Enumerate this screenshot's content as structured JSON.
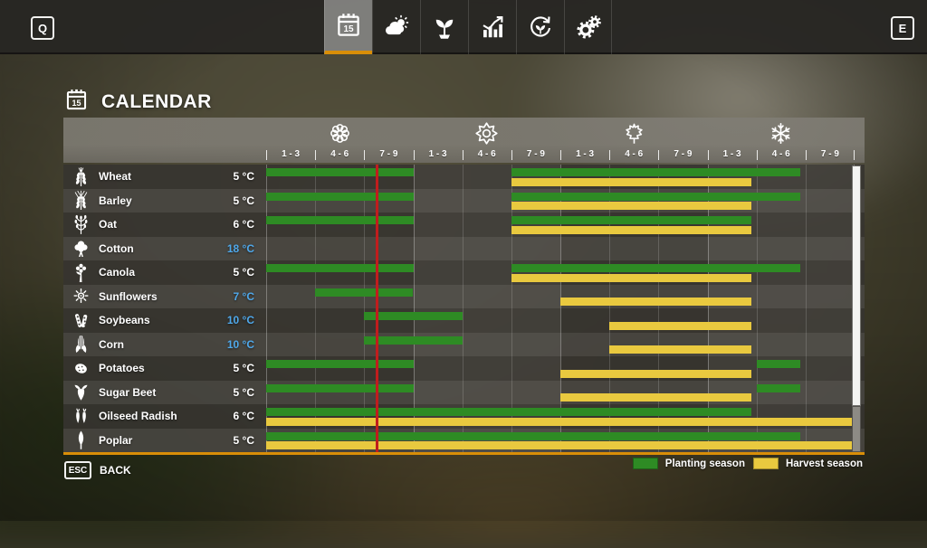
{
  "topbar": {
    "left_key": "Q",
    "right_key": "E",
    "tabs": [
      {
        "id": "calendar",
        "icon": "calendar-icon",
        "badge": "15",
        "active": true
      },
      {
        "id": "weather",
        "icon": "weather-icon",
        "active": false
      },
      {
        "id": "crops",
        "icon": "seedling-icon",
        "active": false
      },
      {
        "id": "economy",
        "icon": "chart-icon",
        "active": false
      },
      {
        "id": "rotation",
        "icon": "rotation-icon",
        "active": false
      },
      {
        "id": "settings",
        "icon": "gears-icon",
        "active": false
      }
    ]
  },
  "page": {
    "title": "CALENDAR",
    "title_icon": "calendar-icon",
    "title_icon_badge": "15"
  },
  "calendar": {
    "months_total": 36,
    "current_time_month": 6.7,
    "seasons": [
      {
        "name": "spring",
        "icon": "flower-icon"
      },
      {
        "name": "summer",
        "icon": "sun-icon"
      },
      {
        "name": "autumn",
        "icon": "maple-leaf-icon"
      },
      {
        "name": "winter",
        "icon": "snowflake-icon"
      }
    ],
    "column_labels": [
      "1 - 3",
      "4 - 6",
      "7 - 9",
      "1 - 3",
      "4 - 6",
      "7 - 9",
      "1 - 3",
      "4 - 6",
      "7 - 9",
      "1 - 3",
      "4 - 6",
      "7 - 9"
    ],
    "rows": [
      {
        "crop": "Wheat",
        "icon": "wheat-icon",
        "temp": "5 °C",
        "temp_cold": false,
        "planting": [
          [
            0,
            9
          ],
          [
            15,
            32.7
          ]
        ],
        "harvest": [
          [
            15,
            29.7
          ]
        ]
      },
      {
        "crop": "Barley",
        "icon": "barley-icon",
        "temp": "5 °C",
        "temp_cold": false,
        "planting": [
          [
            0,
            9
          ],
          [
            15,
            32.7
          ]
        ],
        "harvest": [
          [
            15,
            29.7
          ]
        ]
      },
      {
        "crop": "Oat",
        "icon": "oat-icon",
        "temp": "6 °C",
        "temp_cold": false,
        "planting": [
          [
            0,
            9
          ],
          [
            15,
            29.7
          ]
        ],
        "harvest": [
          [
            15,
            29.7
          ]
        ]
      },
      {
        "crop": "Cotton",
        "icon": "cotton-icon",
        "temp": "18 °C",
        "temp_cold": true,
        "planting": [],
        "harvest": []
      },
      {
        "crop": "Canola",
        "icon": "canola-icon",
        "temp": "5 °C",
        "temp_cold": false,
        "planting": [
          [
            0,
            9
          ],
          [
            15,
            32.7
          ]
        ],
        "harvest": [
          [
            15,
            29.7
          ]
        ]
      },
      {
        "crop": "Sunflowers",
        "icon": "sunflower-icon",
        "temp": "7 °C",
        "temp_cold": true,
        "planting": [
          [
            3,
            9
          ]
        ],
        "harvest": [
          [
            18,
            29.7
          ]
        ]
      },
      {
        "crop": "Soybeans",
        "icon": "soybean-icon",
        "temp": "10 °C",
        "temp_cold": true,
        "planting": [
          [
            6,
            12
          ]
        ],
        "harvest": [
          [
            21,
            29.7
          ]
        ]
      },
      {
        "crop": "Corn",
        "icon": "corn-icon",
        "temp": "10 °C",
        "temp_cold": true,
        "planting": [
          [
            6,
            12
          ]
        ],
        "harvest": [
          [
            21,
            29.7
          ]
        ]
      },
      {
        "crop": "Potatoes",
        "icon": "potato-icon",
        "temp": "5 °C",
        "temp_cold": false,
        "planting": [
          [
            0,
            9
          ],
          [
            30,
            32.7
          ]
        ],
        "harvest": [
          [
            18,
            29.7
          ]
        ]
      },
      {
        "crop": "Sugar Beet",
        "icon": "sugarbeet-icon",
        "temp": "5 °C",
        "temp_cold": false,
        "planting": [
          [
            0,
            9
          ],
          [
            30,
            32.7
          ]
        ],
        "harvest": [
          [
            18,
            29.7
          ]
        ]
      },
      {
        "crop": "Oilseed Radish",
        "icon": "radish-icon",
        "temp": "6 °C",
        "temp_cold": false,
        "planting": [
          [
            0,
            29.7
          ]
        ],
        "harvest": [
          [
            0,
            36
          ]
        ]
      },
      {
        "crop": "Poplar",
        "icon": "poplar-icon",
        "temp": "5 °C",
        "temp_cold": false,
        "planting": [
          [
            0,
            32.7
          ]
        ],
        "harvest": [
          [
            0,
            36
          ]
        ]
      }
    ],
    "legend": [
      {
        "label": "Planting season",
        "color": "#2e8b24"
      },
      {
        "label": "Harvest season",
        "color": "#e9c93f"
      }
    ]
  },
  "footer": {
    "key": "ESC",
    "label": "BACK"
  },
  "colors": {
    "planting_green": "#2e8b24",
    "harvest_yellow": "#e9c93f",
    "current_time_red": "#c01d1d",
    "accent_orange": "#d98e08",
    "cold_temp_blue": "#4fa8ea"
  }
}
